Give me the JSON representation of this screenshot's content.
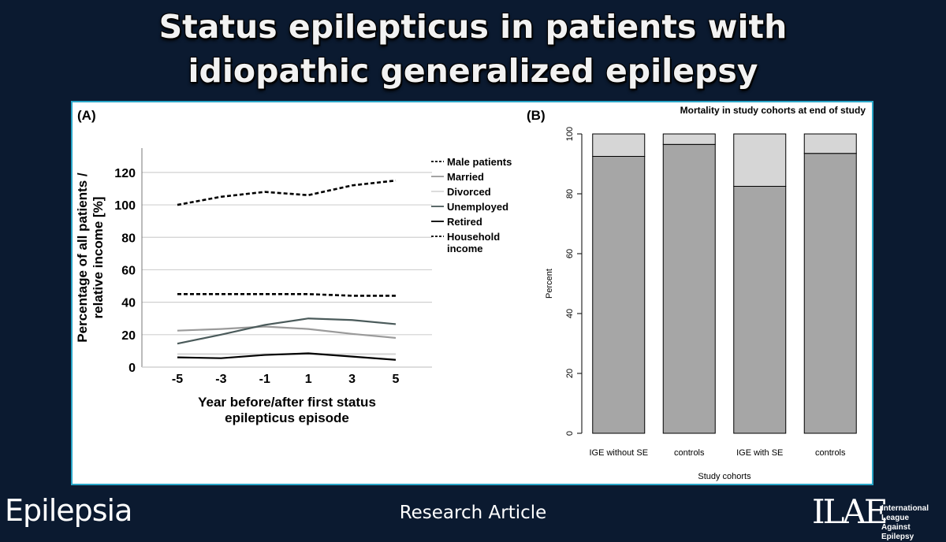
{
  "header": {
    "title_line1": "Status epilepticus in patients with",
    "title_line2": "idiopathic generalized epilepsy"
  },
  "footer": {
    "journal": "Epilepsia",
    "article_type": "Research Article",
    "logo_mark": "ILAE",
    "logo_line1": "International League",
    "logo_line2": "Against Epilepsy"
  },
  "colors": {
    "background": "#0b1a30",
    "panel_border": "#2aa6c8",
    "bar_dark": "#a6a6a6",
    "bar_light": "#d6d6d6"
  },
  "chart_data": [
    {
      "panel_label": "(A)",
      "type": "line",
      "xlabel_line1": "Year before/after first status",
      "xlabel_line2": "epilepticus episode",
      "ylabel_line1": "Percentage of all patients /",
      "ylabel_line2": "relative income [%]",
      "x": [
        -5,
        -3,
        -1,
        1,
        3,
        5
      ],
      "x_ticks": [
        "-5",
        "-3",
        "-1",
        "1",
        "3",
        "5"
      ],
      "y_ticks": [
        0,
        20,
        40,
        60,
        80,
        100,
        120
      ],
      "ylim": [
        0,
        135
      ],
      "grid": true,
      "legend_position": "right",
      "series": [
        {
          "name": "Male patients",
          "values": [
            45,
            45,
            45,
            45,
            44,
            44
          ],
          "color": "#000000",
          "dash": "dashed"
        },
        {
          "name": "Married",
          "values": [
            22.5,
            23.5,
            25,
            23.5,
            20.5,
            18
          ],
          "color": "#9a9a9a",
          "dash": "solid"
        },
        {
          "name": "Divorced",
          "values": [
            8,
            8,
            8,
            8,
            8,
            8
          ],
          "color": "#d8d8d8",
          "dash": "solid"
        },
        {
          "name": "Unemployed",
          "values": [
            14.5,
            20,
            26,
            30,
            29,
            26.5
          ],
          "color": "#4a5a5a",
          "dash": "solid"
        },
        {
          "name": "Retired",
          "values": [
            6,
            5.5,
            7.5,
            8.5,
            6.5,
            4.5
          ],
          "color": "#000000",
          "dash": "solid"
        },
        {
          "name": "Household income",
          "values": [
            100,
            105,
            108,
            106,
            112,
            115
          ],
          "color": "#000000",
          "dash": "dashed"
        }
      ]
    },
    {
      "panel_label": "(B)",
      "type": "bar",
      "stacked": true,
      "title": "Mortality in study cohorts at end of study",
      "xlabel": "Study cohorts",
      "ylabel": "Percent",
      "categories": [
        "IGE without SE",
        "controls",
        "IGE with SE",
        "controls"
      ],
      "y_ticks": [
        0,
        20,
        40,
        60,
        80,
        100
      ],
      "ylim": [
        0,
        100
      ],
      "series": [
        {
          "values": [
            92.5,
            96.5,
            82.5,
            93.5
          ],
          "color": "#a6a6a6"
        },
        {
          "values": [
            7.5,
            3.5,
            17.5,
            6.5
          ],
          "color": "#d6d6d6"
        }
      ]
    }
  ]
}
